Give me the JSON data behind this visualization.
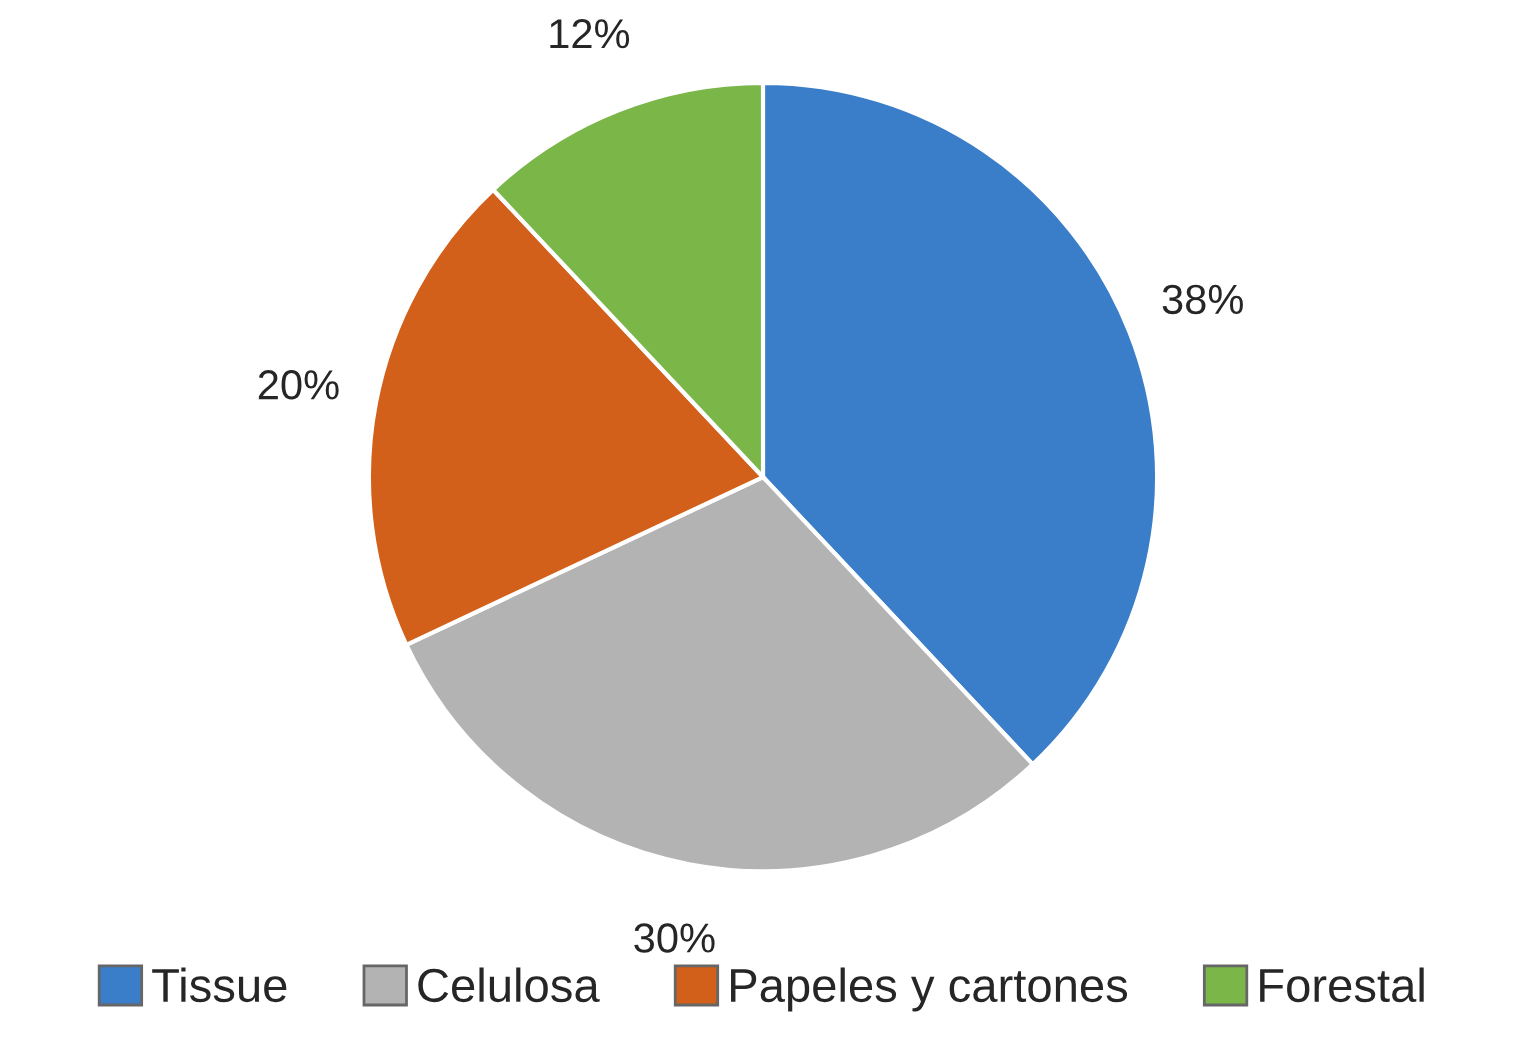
{
  "chart_data": {
    "type": "pie",
    "categories": [
      "Tissue",
      "Celulosa",
      "Papeles y cartones",
      "Forestal"
    ],
    "values": [
      38,
      30,
      20,
      12
    ],
    "colors": [
      "#3a7dc9",
      "#b3b3b3",
      "#d2601a",
      "#7ab648"
    ],
    "value_labels": [
      "38%",
      "30%",
      "20%",
      "12%"
    ],
    "legend": "bottom"
  }
}
